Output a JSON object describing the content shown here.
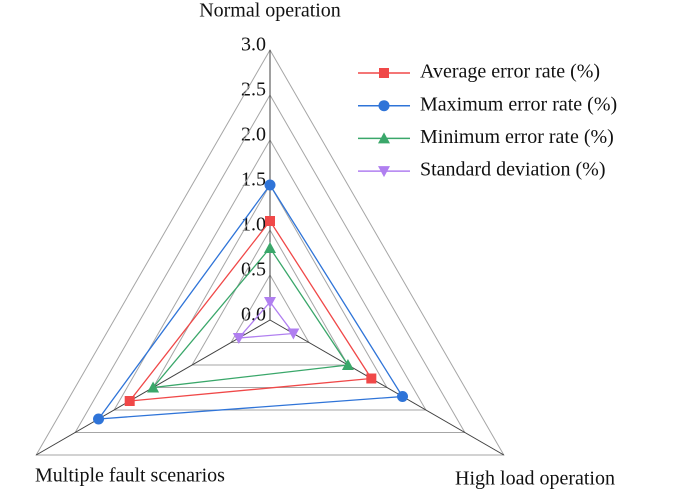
{
  "chart_data": {
    "type": "radar",
    "categories": [
      "Normal operation",
      "High load operation",
      "Multiple fault scenarios"
    ],
    "series": [
      {
        "name": "Average error rate (%)",
        "color": "#f04848",
        "marker": "square",
        "values": [
          1.1,
          1.3,
          1.8
        ]
      },
      {
        "name": "Maximum error rate (%)",
        "color": "#2f74d8",
        "marker": "circle",
        "values": [
          1.5,
          1.7,
          2.2
        ]
      },
      {
        "name": "Minimum error rate (%)",
        "color": "#3aa76a",
        "marker": "triangle",
        "values": [
          0.8,
          1.0,
          1.5
        ]
      },
      {
        "name": "Standard deviation (%)",
        "color": "#b07ff0",
        "marker": "triangle-down",
        "values": [
          0.2,
          0.3,
          0.4
        ]
      }
    ],
    "rlim": [
      0,
      3
    ],
    "rticks": [
      {
        "value": 0,
        "label": "0.0"
      },
      0.5,
      {
        "value": 1,
        "label": "1.0"
      },
      1.5,
      {
        "value": 2,
        "label": "2.0"
      },
      2.5,
      {
        "value": 3,
        "label": "3.0"
      }
    ],
    "grid": true,
    "legend": "upper right"
  }
}
